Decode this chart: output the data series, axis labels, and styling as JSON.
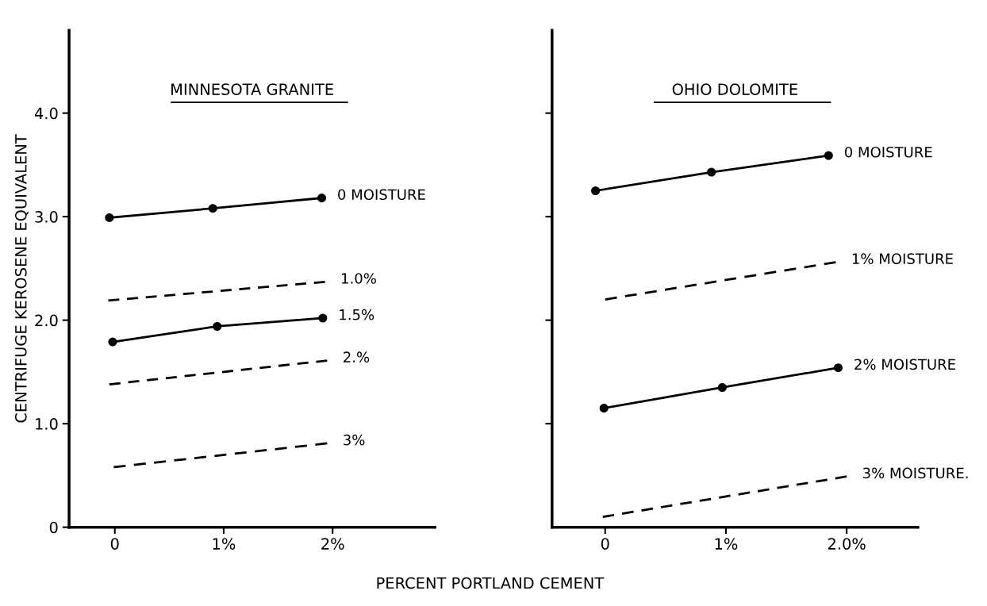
{
  "chart_data": [
    {
      "type": "line",
      "title": "MINNESOTA GRANITE",
      "xlabel": "PERCENT PORTLAND CEMENT",
      "ylabel": "CENTRIFUGE KEROSENE EQUIVALENT",
      "xlim": [
        -0.42,
        2.94
      ],
      "xticks": [
        {
          "value": 0,
          "label": "0"
        },
        {
          "value": 1,
          "label": "1%"
        },
        {
          "value": 2,
          "label": "2%"
        }
      ],
      "ylim": [
        0,
        4.8
      ],
      "yticks": [
        {
          "value": 0,
          "label": "0"
        },
        {
          "value": 1,
          "label": "1.0"
        },
        {
          "value": 2,
          "label": "2.0"
        },
        {
          "value": 3,
          "label": "3.0"
        },
        {
          "value": 4,
          "label": "4.0"
        }
      ],
      "grid": false,
      "legend": false,
      "series": [
        {
          "name": "0 MOISTURE",
          "color": "#000000",
          "marker": "circle",
          "line_style": "solid",
          "x": [
            -0.05,
            0.9,
            1.9
          ],
          "values": [
            2.99,
            3.08,
            3.18
          ]
        },
        {
          "name": "1.0%",
          "color": "#000000",
          "marker": "none",
          "line_style": "dashed",
          "x": [
            -0.06,
            1.93
          ],
          "values": [
            2.19,
            2.37
          ]
        },
        {
          "name": "1.5%",
          "color": "#000000",
          "marker": "circle",
          "line_style": "solid",
          "x": [
            -0.02,
            0.94,
            1.91
          ],
          "values": [
            1.79,
            1.94,
            2.02
          ]
        },
        {
          "name": "2.%",
          "color": "#000000",
          "marker": "none",
          "line_style": "dashed",
          "x": [
            -0.05,
            1.95
          ],
          "values": [
            1.38,
            1.61
          ]
        },
        {
          "name": "3%",
          "color": "#000000",
          "marker": "none",
          "line_style": "dashed",
          "x": [
            -0.01,
            1.95
          ],
          "values": [
            0.58,
            0.81
          ]
        }
      ]
    },
    {
      "type": "line",
      "title": "OHIO DOLOMITE",
      "xlim": [
        -0.44,
        2.59
      ],
      "xticks": [
        {
          "value": 0,
          "label": "0"
        },
        {
          "value": 1,
          "label": "1%"
        },
        {
          "value": 2,
          "label": "2.0%"
        }
      ],
      "ylim": [
        0,
        4.8
      ],
      "yticks": [
        {
          "value": 1,
          "label": null
        },
        {
          "value": 2,
          "label": null
        },
        {
          "value": 3,
          "label": null
        },
        {
          "value": 4,
          "label": null
        }
      ],
      "tick_labels": "x",
      "grid": false,
      "legend": false,
      "series": [
        {
          "name": "0 MOISTURE",
          "color": "#000000",
          "marker": "circle",
          "line_style": "solid",
          "x": [
            -0.08,
            0.88,
            1.85
          ],
          "values": [
            3.25,
            3.43,
            3.59
          ]
        },
        {
          "name": "1% MOISTURE",
          "color": "#000000",
          "marker": "none",
          "line_style": "dashed",
          "x": [
            0.0,
            1.91
          ],
          "values": [
            2.2,
            2.56
          ]
        },
        {
          "name": "2% MOISTURE",
          "color": "#000000",
          "marker": "circle",
          "line_style": "solid",
          "x": [
            -0.01,
            0.97,
            1.93
          ],
          "values": [
            1.15,
            1.35,
            1.54
          ]
        },
        {
          "name": "3% MOISTURE.",
          "color": "#000000",
          "marker": "none",
          "line_style": "dashed",
          "x": [
            -0.02,
            2.0
          ],
          "values": [
            0.1,
            0.49
          ]
        }
      ]
    }
  ]
}
